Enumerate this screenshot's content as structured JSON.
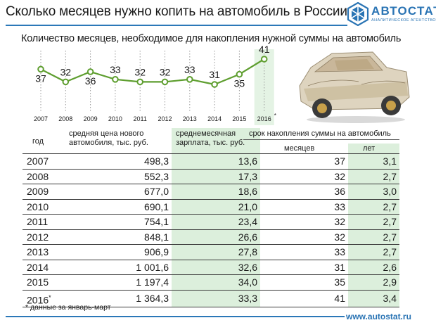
{
  "header": {
    "title": "Сколько месяцев нужно копить на автомобиль в России",
    "logo_name": "АВТОСТАТ",
    "logo_sub": "аналитическое агентство"
  },
  "chart_data": {
    "type": "line",
    "title": "Количество месяцев, необходимое для накопления нужной суммы на автомобиль",
    "x": [
      "2007",
      "2008",
      "2009",
      "2010",
      "2011",
      "2012",
      "2013",
      "2014",
      "2015",
      "2016"
    ],
    "x_note_mark": "*",
    "values": [
      37,
      32,
      36,
      33,
      32,
      32,
      33,
      31,
      35,
      41
    ],
    "line_color": "#5e9e2f",
    "highlight_color": "#e4f3e4",
    "grid": false
  },
  "table": {
    "headers": {
      "year": "год",
      "price": "средняя цена нового автомобиля, тыс. руб.",
      "salary": "среднемесячная зарплата, тыс. руб.",
      "group": "срок накопления суммы на автомобиль",
      "months": "месяцев",
      "years": "лет"
    },
    "rows": [
      {
        "year": "2007",
        "mark": "",
        "price": "498,3",
        "salary": "13,6",
        "months": "37",
        "years": "3,1"
      },
      {
        "year": "2008",
        "mark": "",
        "price": "552,3",
        "salary": "17,3",
        "months": "32",
        "years": "2,7"
      },
      {
        "year": "2009",
        "mark": "",
        "price": "677,0",
        "salary": "18,6",
        "months": "36",
        "years": "3,0"
      },
      {
        "year": "2010",
        "mark": "",
        "price": "690,1",
        "salary": "21,0",
        "months": "33",
        "years": "2,7"
      },
      {
        "year": "2011",
        "mark": "",
        "price": "754,1",
        "salary": "23,4",
        "months": "32",
        "years": "2,7"
      },
      {
        "year": "2012",
        "mark": "",
        "price": "848,1",
        "salary": "26,6",
        "months": "32",
        "years": "2,7"
      },
      {
        "year": "2013",
        "mark": "",
        "price": "906,9",
        "salary": "27,8",
        "months": "33",
        "years": "2,7"
      },
      {
        "year": "2014",
        "mark": "",
        "price": "1 001,6",
        "salary": "32,6",
        "months": "31",
        "years": "2,6"
      },
      {
        "year": "2015",
        "mark": "",
        "price": "1 197,4",
        "salary": "34,0",
        "months": "35",
        "years": "2,9"
      },
      {
        "year": "2016",
        "mark": "*",
        "price": "1 364,3",
        "salary": "33,3",
        "months": "41",
        "years": "3,4"
      }
    ]
  },
  "footer": {
    "footnote": "* данные за январь-март",
    "url": "www.autostat.ru"
  },
  "colors": {
    "brand": "#2a74b4",
    "highlight": "#dcefdc"
  }
}
